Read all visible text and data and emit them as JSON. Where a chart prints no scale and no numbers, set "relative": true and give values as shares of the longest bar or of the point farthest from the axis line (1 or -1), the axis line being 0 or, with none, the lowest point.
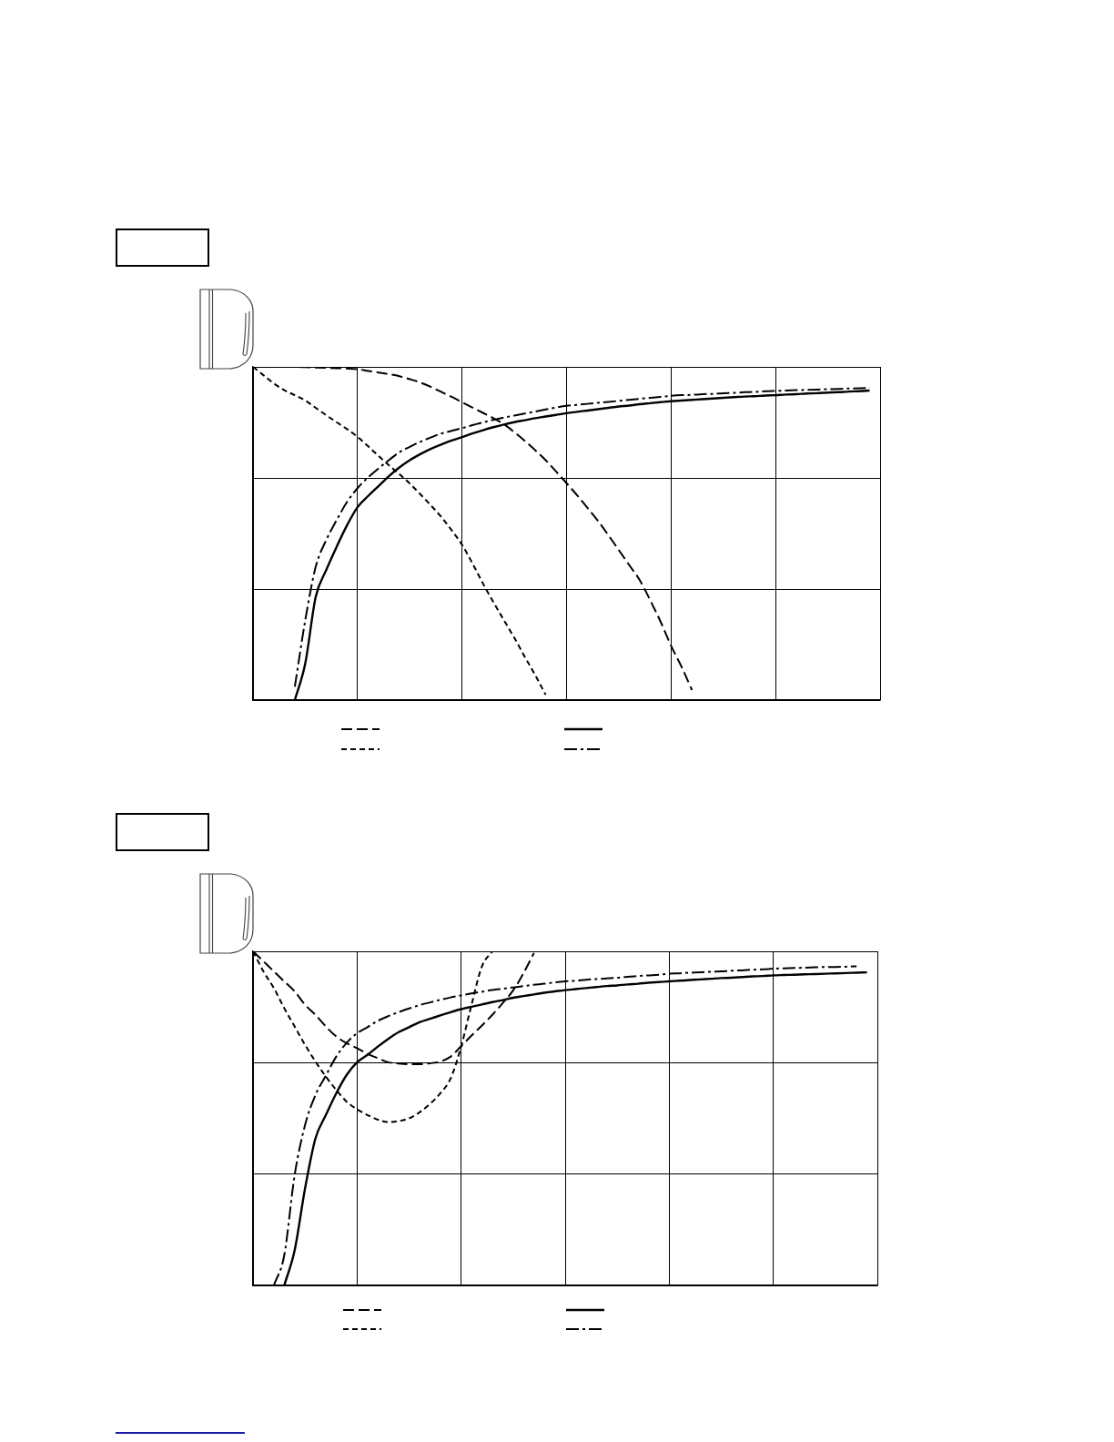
{
  "chart_data": [
    {
      "type": "line",
      "relative": true,
      "grid": true,
      "categories": [
        null,
        null,
        null,
        null,
        null,
        null,
        null,
        null,
        null,
        null,
        null,
        null,
        null,
        null,
        null,
        null,
        null,
        null,
        null,
        null,
        null,
        null,
        null,
        null,
        null,
        null,
        null,
        null,
        null,
        null,
        null,
        null,
        null,
        null,
        null,
        null,
        null,
        null,
        null,
        null,
        null,
        null,
        null,
        null,
        null,
        null,
        null,
        null,
        null,
        null,
        null,
        null,
        null,
        null,
        null,
        null,
        null,
        null,
        null,
        null,
        null
      ],
      "series": [
        {
          "color": "#000000",
          "line_style": "dashed",
          "values": [
            1,
            1,
            1,
            1,
            1,
            0.999,
            0.998,
            0.997,
            0.996,
            0.995,
            0.993,
            0.988,
            0.983,
            0.978,
            0.972,
            0.963,
            0.953,
            0.94,
            0.925,
            0.91,
            0.894,
            0.878,
            0.862,
            0.846,
            0.828,
            0.804,
            0.778,
            0.75,
            0.72,
            0.686,
            0.651,
            0.615,
            0.577,
            0.538,
            0.495,
            0.45,
            0.405,
            0.36,
            0.3,
            0.235,
            0.163,
            0.1,
            0.03,
            null,
            null,
            null,
            null,
            null,
            null,
            null,
            null,
            null,
            null,
            null,
            null,
            null,
            null,
            null,
            null,
            null,
            null
          ]
        },
        {
          "color": "#000000",
          "line_style": "solid",
          "values": [
            null,
            null,
            null,
            null,
            0,
            0.11,
            0.31,
            0.39,
            0.46,
            0.525,
            0.579,
            0.612,
            0.642,
            0.672,
            0.698,
            0.72,
            0.738,
            0.754,
            0.767,
            0.779,
            0.789,
            0.8,
            0.81,
            0.819,
            0.827,
            0.834,
            0.84,
            0.846,
            0.851,
            0.856,
            0.861,
            0.865,
            0.869,
            0.873,
            0.877,
            0.881,
            0.884,
            0.888,
            0.891,
            0.894,
            0.897,
            0.899,
            0.901,
            0.903,
            0.905,
            0.907,
            0.909,
            0.911,
            0.912,
            0.914,
            0.915,
            0.917,
            0.918,
            0.92,
            0.921,
            0.923,
            0.924,
            0.926,
            0.927,
            0.929,
            null
          ]
        },
        {
          "color": "#000000",
          "line_style": "dotted",
          "values": [
            1,
            0.975,
            0.95,
            0.93,
            0.915,
            0.899,
            0.877,
            0.855,
            0.834,
            0.813,
            0.79,
            0.762,
            0.733,
            0.705,
            0.678,
            0.65,
            0.618,
            0.585,
            0.55,
            0.51,
            0.466,
            0.41,
            0.35,
            0.294,
            0.24,
            0.187,
            0.13,
            0.075,
            0.016,
            null,
            null,
            null,
            null,
            null,
            null,
            null,
            null,
            null,
            null,
            null,
            null,
            null,
            null,
            null,
            null,
            null,
            null,
            null,
            null,
            null,
            null,
            null,
            null,
            null,
            null,
            null,
            null,
            null,
            null,
            null,
            null
          ]
        },
        {
          "color": "#000000",
          "line_style": "dashdot",
          "values": [
            null,
            null,
            null,
            null,
            0.04,
            0.24,
            0.4,
            0.48,
            0.54,
            0.595,
            0.636,
            0.668,
            0.695,
            0.72,
            0.744,
            0.76,
            0.775,
            0.788,
            0.8,
            0.808,
            0.816,
            0.825,
            0.833,
            0.841,
            0.848,
            0.854,
            0.86,
            0.866,
            0.872,
            0.878,
            0.883,
            0.886,
            0.889,
            0.892,
            0.895,
            0.898,
            0.901,
            0.904,
            0.907,
            0.91,
            0.913,
            0.915,
            0.916,
            0.918,
            0.919,
            0.921,
            0.922,
            0.924,
            0.925,
            0.927,
            0.928,
            0.929,
            0.93,
            0.931,
            0.932,
            0.933,
            0.934,
            0.935,
            0.936,
            0.937,
            null
          ]
        }
      ]
    },
    {
      "type": "line",
      "relative": true,
      "grid": true,
      "categories": [
        null,
        null,
        null,
        null,
        null,
        null,
        null,
        null,
        null,
        null,
        null,
        null,
        null,
        null,
        null,
        null,
        null,
        null,
        null,
        null,
        null,
        null,
        null,
        null,
        null,
        null,
        null,
        null,
        null,
        null,
        null,
        null,
        null,
        null,
        null,
        null,
        null,
        null,
        null,
        null,
        null,
        null,
        null,
        null,
        null,
        null,
        null,
        null,
        null,
        null,
        null,
        null,
        null,
        null,
        null,
        null,
        null,
        null,
        null,
        null,
        null
      ],
      "series": [
        {
          "color": "#000000",
          "line_style": "dashed",
          "values": [
            1,
            0.97,
            0.94,
            0.91,
            0.88,
            0.84,
            0.81,
            0.775,
            0.745,
            0.725,
            0.71,
            0.693,
            0.68,
            0.668,
            0.664,
            0.662,
            0.662,
            0.665,
            0.67,
            0.685,
            0.716,
            0.748,
            0.778,
            0.81,
            0.845,
            0.883,
            0.935,
            0.995,
            null,
            null,
            null,
            null,
            null,
            null,
            null,
            null,
            null,
            null,
            null,
            null,
            null,
            null,
            null,
            null,
            null,
            null,
            null,
            null,
            null,
            null,
            null,
            null,
            null,
            null,
            null,
            null,
            null,
            null,
            null,
            null,
            null
          ]
        },
        {
          "color": "#000000",
          "line_style": "solid",
          "values": [
            null,
            null,
            null,
            0,
            0.105,
            0.29,
            0.44,
            0.51,
            0.575,
            0.63,
            0.668,
            0.69,
            0.715,
            0.738,
            0.758,
            0.773,
            0.788,
            0.798,
            0.808,
            0.818,
            0.827,
            0.834,
            0.841,
            0.848,
            0.854,
            0.861,
            0.866,
            0.871,
            0.876,
            0.88,
            0.884,
            0.887,
            0.89,
            0.893,
            0.896,
            0.898,
            0.901,
            0.903,
            0.906,
            0.908,
            0.91,
            0.912,
            0.914,
            0.916,
            0.918,
            0.92,
            0.921,
            0.923,
            0.925,
            0.926,
            0.928,
            0.929,
            0.93,
            0.931,
            0.932,
            0.933,
            0.934,
            0.935,
            0.936,
            0.937,
            null
          ]
        },
        {
          "color": "#000000",
          "line_style": "dotted",
          "values": [
            1,
            0.94,
            0.89,
            0.83,
            0.775,
            0.72,
            0.67,
            0.625,
            0.585,
            0.55,
            0.527,
            0.51,
            0.496,
            0.489,
            0.492,
            0.5,
            0.518,
            0.543,
            0.575,
            0.62,
            0.715,
            0.84,
            0.955,
            1,
            null,
            null,
            null,
            null,
            null,
            null,
            null,
            null,
            null,
            null,
            null,
            null,
            null,
            null,
            null,
            null,
            null,
            null,
            null,
            null,
            null,
            null,
            null,
            null,
            null,
            null,
            null,
            null,
            null,
            null,
            null,
            null,
            null,
            null,
            null,
            null,
            null
          ]
        },
        {
          "color": "#000000",
          "line_style": "dashdot",
          "values": [
            null,
            null,
            0,
            0.09,
            0.33,
            0.48,
            0.57,
            0.628,
            0.685,
            0.726,
            0.755,
            0.773,
            0.792,
            0.806,
            0.818,
            0.829,
            0.839,
            0.847,
            0.855,
            0.862,
            0.868,
            0.874,
            0.879,
            0.884,
            0.888,
            0.892,
            0.896,
            0.9,
            0.903,
            0.907,
            0.91,
            0.912,
            0.915,
            0.917,
            0.919,
            0.921,
            0.924,
            0.926,
            0.928,
            0.93,
            0.933,
            0.934,
            0.936,
            0.937,
            0.939,
            0.94,
            0.942,
            0.943,
            0.945,
            0.946,
            0.948,
            0.949,
            0.95,
            0.951,
            0.952,
            0.953,
            0.953,
            0.954,
            0.955,
            null,
            null
          ]
        }
      ]
    }
  ]
}
